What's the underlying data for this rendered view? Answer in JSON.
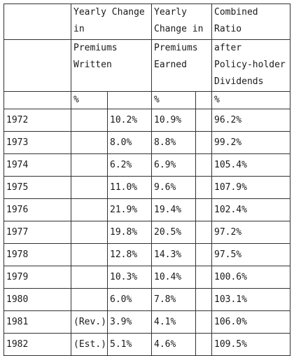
{
  "header": {
    "row1": {
      "premiums_written": [
        "Yearly Change",
        "in"
      ],
      "premiums_earned": [
        "Yearly",
        "Change in"
      ],
      "combined_ratio": [
        "Combined",
        "Ratio"
      ]
    },
    "row2": {
      "premiums_written": [
        "Premiums",
        "Written"
      ],
      "premiums_earned": [
        "Premiums",
        "Earned"
      ],
      "combined_ratio": [
        "after",
        "Policy-holder",
        "Dividends"
      ]
    },
    "unit_row": {
      "premiums_written": "%",
      "premiums_earned": "%",
      "combined_ratio": "%"
    }
  },
  "rows": [
    {
      "year": "1972",
      "note": "",
      "written": "10.2%",
      "earned": "10.9%",
      "ratio": "96.2%"
    },
    {
      "year": "1973",
      "note": "",
      "written": "8.0%",
      "earned": "8.8%",
      "ratio": "99.2%"
    },
    {
      "year": "1974",
      "note": "",
      "written": "6.2%",
      "earned": "6.9%",
      "ratio": "105.4%"
    },
    {
      "year": "1975",
      "note": "",
      "written": "11.0%",
      "earned": "9.6%",
      "ratio": "107.9%"
    },
    {
      "year": "1976",
      "note": "",
      "written": "21.9%",
      "earned": "19.4%",
      "ratio": "102.4%"
    },
    {
      "year": "1977",
      "note": "",
      "written": "19.8%",
      "earned": "20.5%",
      "ratio": "97.2%"
    },
    {
      "year": "1978",
      "note": "",
      "written": "12.8%",
      "earned": "14.3%",
      "ratio": "97.5%"
    },
    {
      "year": "1979",
      "note": "",
      "written": "10.3%",
      "earned": "10.4%",
      "ratio": "100.6%"
    },
    {
      "year": "1980",
      "note": "",
      "written": "6.0%",
      "earned": "7.8%",
      "ratio": "103.1%"
    },
    {
      "year": "1981",
      "note": "(Rev.)",
      "written": "3.9%",
      "earned": "4.1%",
      "ratio": "106.0%"
    },
    {
      "year": "1982",
      "note": "(Est.)",
      "written": "5.1%",
      "earned": "4.6%",
      "ratio": "109.5%"
    }
  ]
}
